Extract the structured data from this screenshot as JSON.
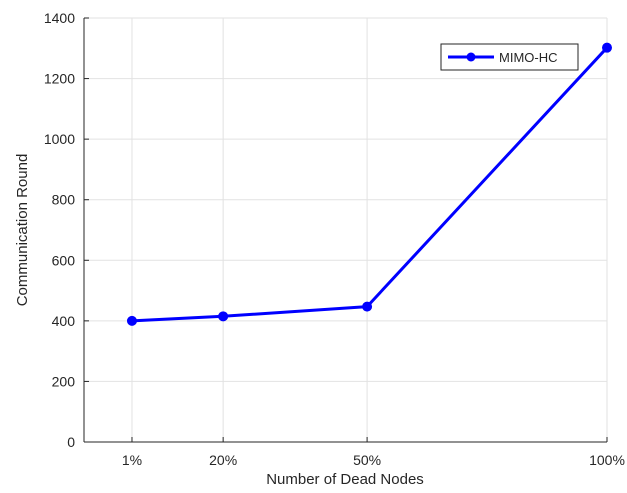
{
  "chart_data": {
    "type": "line",
    "title": "",
    "xlabel": "Number of Dead Nodes",
    "ylabel": "Communication Round",
    "categories": [
      "1%",
      "20%",
      "50%",
      "100%"
    ],
    "x": [
      1,
      20,
      50,
      100
    ],
    "xlim": [
      -9,
      100
    ],
    "ylim": [
      0,
      1400
    ],
    "yticks": [
      0,
      200,
      400,
      600,
      800,
      1000,
      1200,
      1400
    ],
    "grid": true,
    "legend_position": "top-right",
    "series": [
      {
        "name": "MIMO-HC",
        "color": "#0000ff",
        "marker": "circle",
        "values": [
          400,
          415,
          447,
          1302
        ]
      }
    ]
  }
}
